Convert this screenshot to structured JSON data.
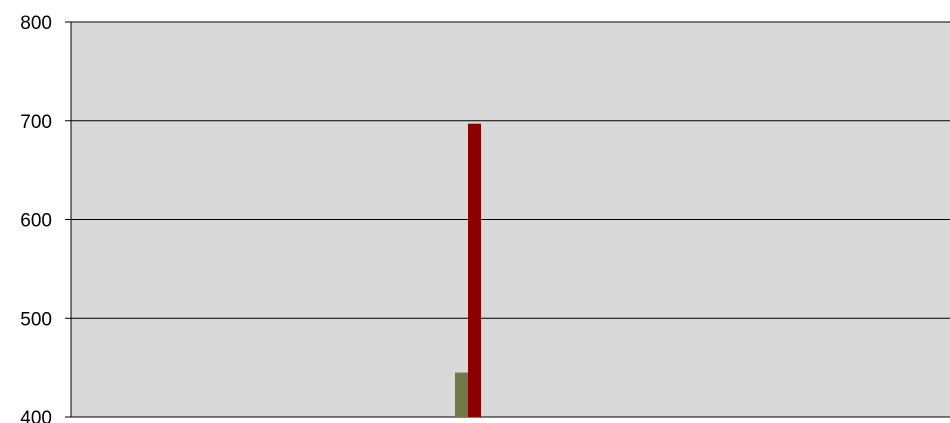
{
  "chart_data": {
    "type": "bar",
    "title": "",
    "xlabel": "",
    "ylabel": "",
    "ylim": [
      400,
      800
    ],
    "y_ticks": [
      "400",
      "500",
      "600",
      "700",
      "800"
    ],
    "grid": true,
    "legend": "none",
    "categories": [
      ""
    ],
    "series": [
      {
        "values": [
          445
        ],
        "color": "#6f7a4a"
      },
      {
        "values": [
          697
        ],
        "color": "#8b0000"
      }
    ],
    "plot_background": "#d9d9d9",
    "gridline_color": "#000000"
  }
}
